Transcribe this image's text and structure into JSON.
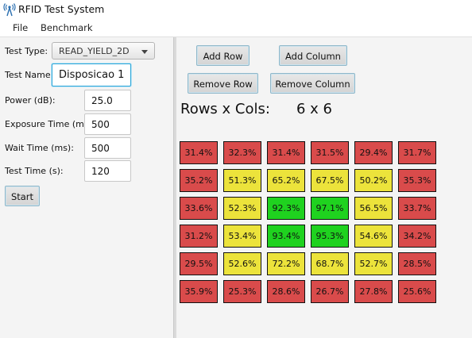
{
  "window": {
    "title": "RFID Test System"
  },
  "menu": [
    "File",
    "Benchmark"
  ],
  "form": {
    "test_type_label": "Test Type:",
    "test_type_value": "READ_YIELD_2D",
    "test_name_label": "Test Name:",
    "test_name_value": "Disposicao 1",
    "power_label": "Power (dB):",
    "power_value": "25.0",
    "exposure_label": "Exposure Time (ms):",
    "exposure_value": "500",
    "wait_label": "Wait Time (ms):",
    "wait_value": "500",
    "test_time_label": "Test Time (s):",
    "test_time_value": "120",
    "start_label": "Start"
  },
  "toolbar": {
    "add_row": "Add Row",
    "add_column": "Add Column",
    "remove_row": "Remove Row",
    "remove_column": "Remove Column"
  },
  "grid_info": {
    "label": "Rows x Cols:",
    "value": "6 x 6"
  },
  "colors": {
    "red": "#d94b4b",
    "yellow": "#ece33b",
    "green": "#1fd21f",
    "focus": "#2aa5d8"
  },
  "grid": [
    [
      {
        "v": "31.4%",
        "c": "red"
      },
      {
        "v": "32.3%",
        "c": "red"
      },
      {
        "v": "31.4%",
        "c": "red"
      },
      {
        "v": "31.5%",
        "c": "red"
      },
      {
        "v": "29.4%",
        "c": "red"
      },
      {
        "v": "31.7%",
        "c": "red"
      }
    ],
    [
      {
        "v": "35.2%",
        "c": "red"
      },
      {
        "v": "51.3%",
        "c": "yellow"
      },
      {
        "v": "65.2%",
        "c": "yellow"
      },
      {
        "v": "67.5%",
        "c": "yellow"
      },
      {
        "v": "50.2%",
        "c": "yellow"
      },
      {
        "v": "35.3%",
        "c": "red"
      }
    ],
    [
      {
        "v": "33.6%",
        "c": "red"
      },
      {
        "v": "52.3%",
        "c": "yellow"
      },
      {
        "v": "92.3%",
        "c": "green"
      },
      {
        "v": "97.1%",
        "c": "green"
      },
      {
        "v": "56.5%",
        "c": "yellow"
      },
      {
        "v": "33.7%",
        "c": "red"
      }
    ],
    [
      {
        "v": "31.2%",
        "c": "red"
      },
      {
        "v": "53.4%",
        "c": "yellow"
      },
      {
        "v": "93.4%",
        "c": "green"
      },
      {
        "v": "95.3%",
        "c": "green"
      },
      {
        "v": "54.6%",
        "c": "yellow"
      },
      {
        "v": "34.2%",
        "c": "red"
      }
    ],
    [
      {
        "v": "29.5%",
        "c": "red"
      },
      {
        "v": "52.6%",
        "c": "yellow"
      },
      {
        "v": "72.2%",
        "c": "yellow"
      },
      {
        "v": "68.7%",
        "c": "yellow"
      },
      {
        "v": "52.7%",
        "c": "yellow"
      },
      {
        "v": "28.5%",
        "c": "red"
      }
    ],
    [
      {
        "v": "35.9%",
        "c": "red"
      },
      {
        "v": "25.3%",
        "c": "red"
      },
      {
        "v": "28.6%",
        "c": "red"
      },
      {
        "v": "26.7%",
        "c": "red"
      },
      {
        "v": "27.8%",
        "c": "red"
      },
      {
        "v": "25.6%",
        "c": "red"
      }
    ]
  ]
}
